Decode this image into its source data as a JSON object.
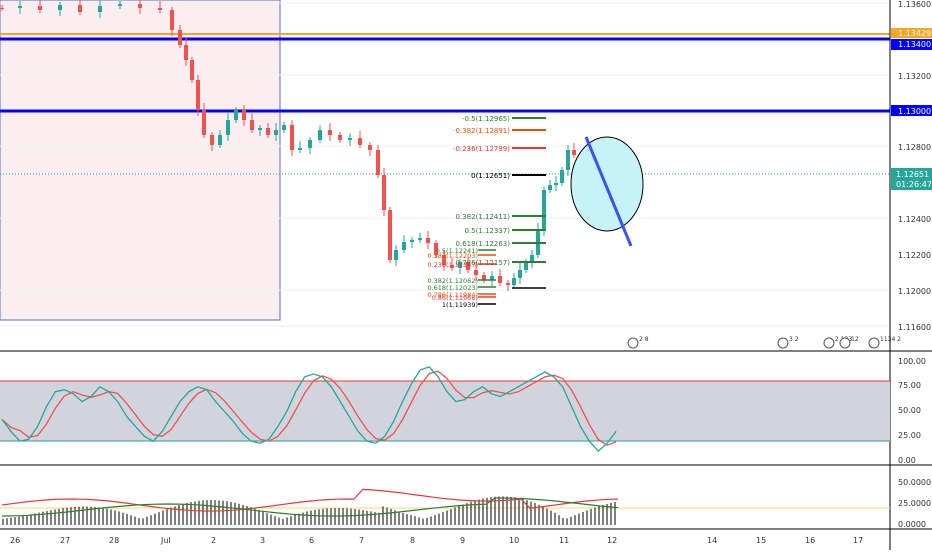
{
  "colors": {
    "bull": "#26a69a",
    "bear": "#ef5350",
    "level_line": "#0000ff",
    "level_label_bg": "#0000ff",
    "current_label_bg": "#26a69a",
    "orange_line": "#f5a623",
    "stoch_k": "#26a69a",
    "stoch_d": "#ef5350",
    "stoch_band": "#d1d4dc",
    "hist": "#000000",
    "hist_line1": "#e53935",
    "hist_line2": "#2e7d32",
    "trend": "#3f51f5",
    "circle_fill": "#c8f3f6"
  },
  "price_axis": {
    "ticks": [
      "1.13600",
      "1.13200",
      "1.12800",
      "1.12400",
      "1.12000",
      "1.11600"
    ],
    "labels_mid": [
      "1.13000",
      "1.12200"
    ],
    "level_labels": [
      "1.13429",
      "1.13400",
      "1.13000"
    ],
    "current_price": "1.12651",
    "countdown": "01:26:47"
  },
  "stoch_axis": {
    "ticks": [
      "100.00",
      "75.00",
      "50.00",
      "25.00",
      "0.00"
    ]
  },
  "macd_axis": {
    "ticks": [
      "50.0000",
      "25.0000",
      "0.0000"
    ]
  },
  "time_axis": {
    "labels": [
      "26",
      "27",
      "28",
      "Jul",
      "2",
      "3",
      "6",
      "7",
      "8",
      "9",
      "10",
      "11",
      "12",
      "14",
      "15",
      "16",
      "17"
    ]
  },
  "fib_right": [
    {
      "text": "-0.5(1.12965)",
      "color": "#2e7d32"
    },
    {
      "text": "-0.382(1.12891)",
      "color": "#e65100"
    },
    {
      "text": "-0.236(1.12799)",
      "color": "#e53935"
    },
    {
      "text": "0(1.12651)",
      "color": "#000000"
    },
    {
      "text": "0.382(1.12411)",
      "color": "#2e7d32"
    },
    {
      "text": "0.5(1.12337)",
      "color": "#2e7d32"
    },
    {
      "text": "0.618(1.12263)",
      "color": "#2e7d32"
    },
    {
      "text": "0.786(1.12157)",
      "color": "#2e7d32"
    }
  ],
  "fib_left": [
    {
      "text": "0.5(1.12241)",
      "color": "#2e7d32"
    },
    {
      "text": "0.382(1.12203)",
      "color": "#e65100"
    },
    {
      "text": "0.236(1.12157)",
      "color": "#e53935"
    },
    {
      "text": "0.382(1.12062)",
      "color": "#2e7d32"
    },
    {
      "text": "0.618(1.12023)",
      "color": "#2e7d32"
    },
    {
      "text": "0.786(1.11984)",
      "color": "#e65100"
    },
    {
      "text": "0.86(1.11966)",
      "color": "#e53935"
    },
    {
      "text": "1(1.11939)",
      "color": "#000000"
    }
  ],
  "event_badges": [
    {
      "label": "2",
      "extra": "8"
    },
    {
      "label": "3",
      "extra": "2"
    },
    {
      "label": "2",
      "extra": "133"
    },
    {
      "label": "12",
      "extra": ""
    },
    {
      "label": "1134",
      "extra": "2"
    }
  ]
}
